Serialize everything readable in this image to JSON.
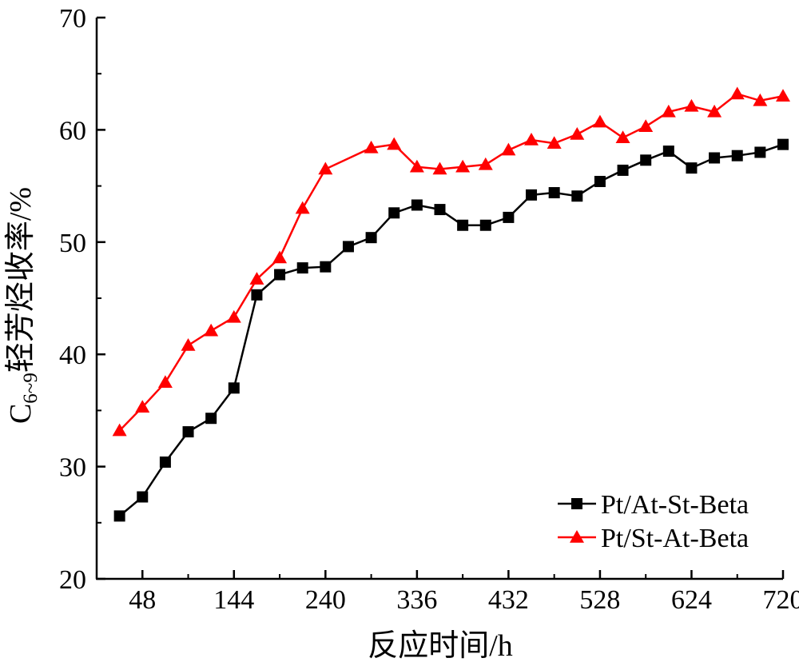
{
  "chart_data": {
    "type": "line",
    "title": "",
    "xlabel": "反应时间/h",
    "ylabel": {
      "prefix": "C",
      "subscript": "6~9",
      "suffix": "轻芳烃收率/%"
    },
    "xlim": [
      0,
      720
    ],
    "ylim": [
      20,
      70
    ],
    "xticks": [
      48,
      144,
      240,
      336,
      432,
      528,
      624,
      720
    ],
    "yticks": [
      20,
      30,
      40,
      50,
      60,
      70
    ],
    "grid": false,
    "legend_position": "bottom-right",
    "series": [
      {
        "name": "Pt/At-St-Beta",
        "color": "#000000",
        "marker": "square",
        "x": [
          24,
          48,
          72,
          96,
          120,
          144,
          168,
          192,
          216,
          240,
          264,
          288,
          312,
          336,
          360,
          384,
          408,
          432,
          456,
          480,
          504,
          528,
          552,
          576,
          600,
          624,
          648,
          672,
          696,
          720
        ],
        "y": [
          25.6,
          27.3,
          30.4,
          33.1,
          34.3,
          37.0,
          45.3,
          47.1,
          47.7,
          47.8,
          49.6,
          50.4,
          52.6,
          53.3,
          52.9,
          51.5,
          51.5,
          52.2,
          54.2,
          54.4,
          54.1,
          55.4,
          56.4,
          57.3,
          58.1,
          56.6,
          57.5,
          57.7,
          58.0,
          58.7
        ]
      },
      {
        "name": "Pt/St-At-Beta",
        "color": "#ff0000",
        "marker": "triangle",
        "x": [
          24,
          48,
          72,
          96,
          120,
          144,
          168,
          192,
          216,
          240,
          288,
          312,
          336,
          360,
          384,
          408,
          432,
          456,
          480,
          504,
          528,
          552,
          576,
          600,
          624,
          648,
          672,
          696,
          720
        ],
        "y": [
          33.2,
          35.3,
          37.5,
          40.8,
          42.1,
          43.3,
          46.7,
          48.6,
          53.0,
          56.5,
          58.4,
          58.7,
          56.7,
          56.5,
          56.7,
          56.9,
          58.2,
          59.1,
          58.8,
          59.6,
          60.7,
          59.3,
          60.3,
          61.6,
          62.1,
          61.6,
          63.2,
          62.6,
          63.0
        ]
      }
    ]
  }
}
